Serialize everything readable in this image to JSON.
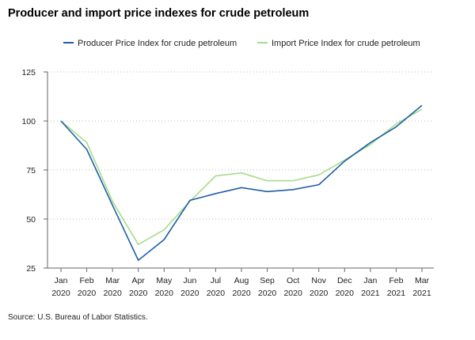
{
  "page": {
    "title": "Producer and import price indexes for crude petroleum",
    "source": "Source: U.S. Bureau of Labor Statistics."
  },
  "chart_data": {
    "type": "line",
    "title": "Producer and import price indexes for crude petroleum",
    "xlabel": "",
    "ylabel": "",
    "categories": [
      [
        "Jan",
        "2020"
      ],
      [
        "Feb",
        "2020"
      ],
      [
        "Mar",
        "2020"
      ],
      [
        "Apr",
        "2020"
      ],
      [
        "May",
        "2020"
      ],
      [
        "Jun",
        "2020"
      ],
      [
        "Jul",
        "2020"
      ],
      [
        "Aug",
        "2020"
      ],
      [
        "Sep",
        "2020"
      ],
      [
        "Oct",
        "2020"
      ],
      [
        "Nov",
        "2020"
      ],
      [
        "Dec",
        "2020"
      ],
      [
        "Jan",
        "2021"
      ],
      [
        "Feb",
        "2021"
      ],
      [
        "Mar",
        "2021"
      ]
    ],
    "ylim": [
      25,
      125
    ],
    "yticks": [
      25,
      50,
      75,
      100,
      125
    ],
    "grid": "horizontal dotted",
    "legend_position": "top",
    "series": [
      {
        "name": "Producer Price Index for crude petroleum",
        "color": "#1f5fa6",
        "values": [
          100,
          85.5,
          57,
          29,
          39.5,
          59.5,
          63,
          66,
          64,
          65,
          67.5,
          79.5,
          89,
          97,
          108
        ]
      },
      {
        "name": "Import Price Index for crude petroleum",
        "color": "#a6dc8a",
        "values": [
          100,
          89,
          59,
          37,
          44.5,
          59,
          72,
          73.5,
          69.5,
          69.5,
          72.5,
          80,
          88,
          98.5,
          106
        ]
      }
    ]
  }
}
